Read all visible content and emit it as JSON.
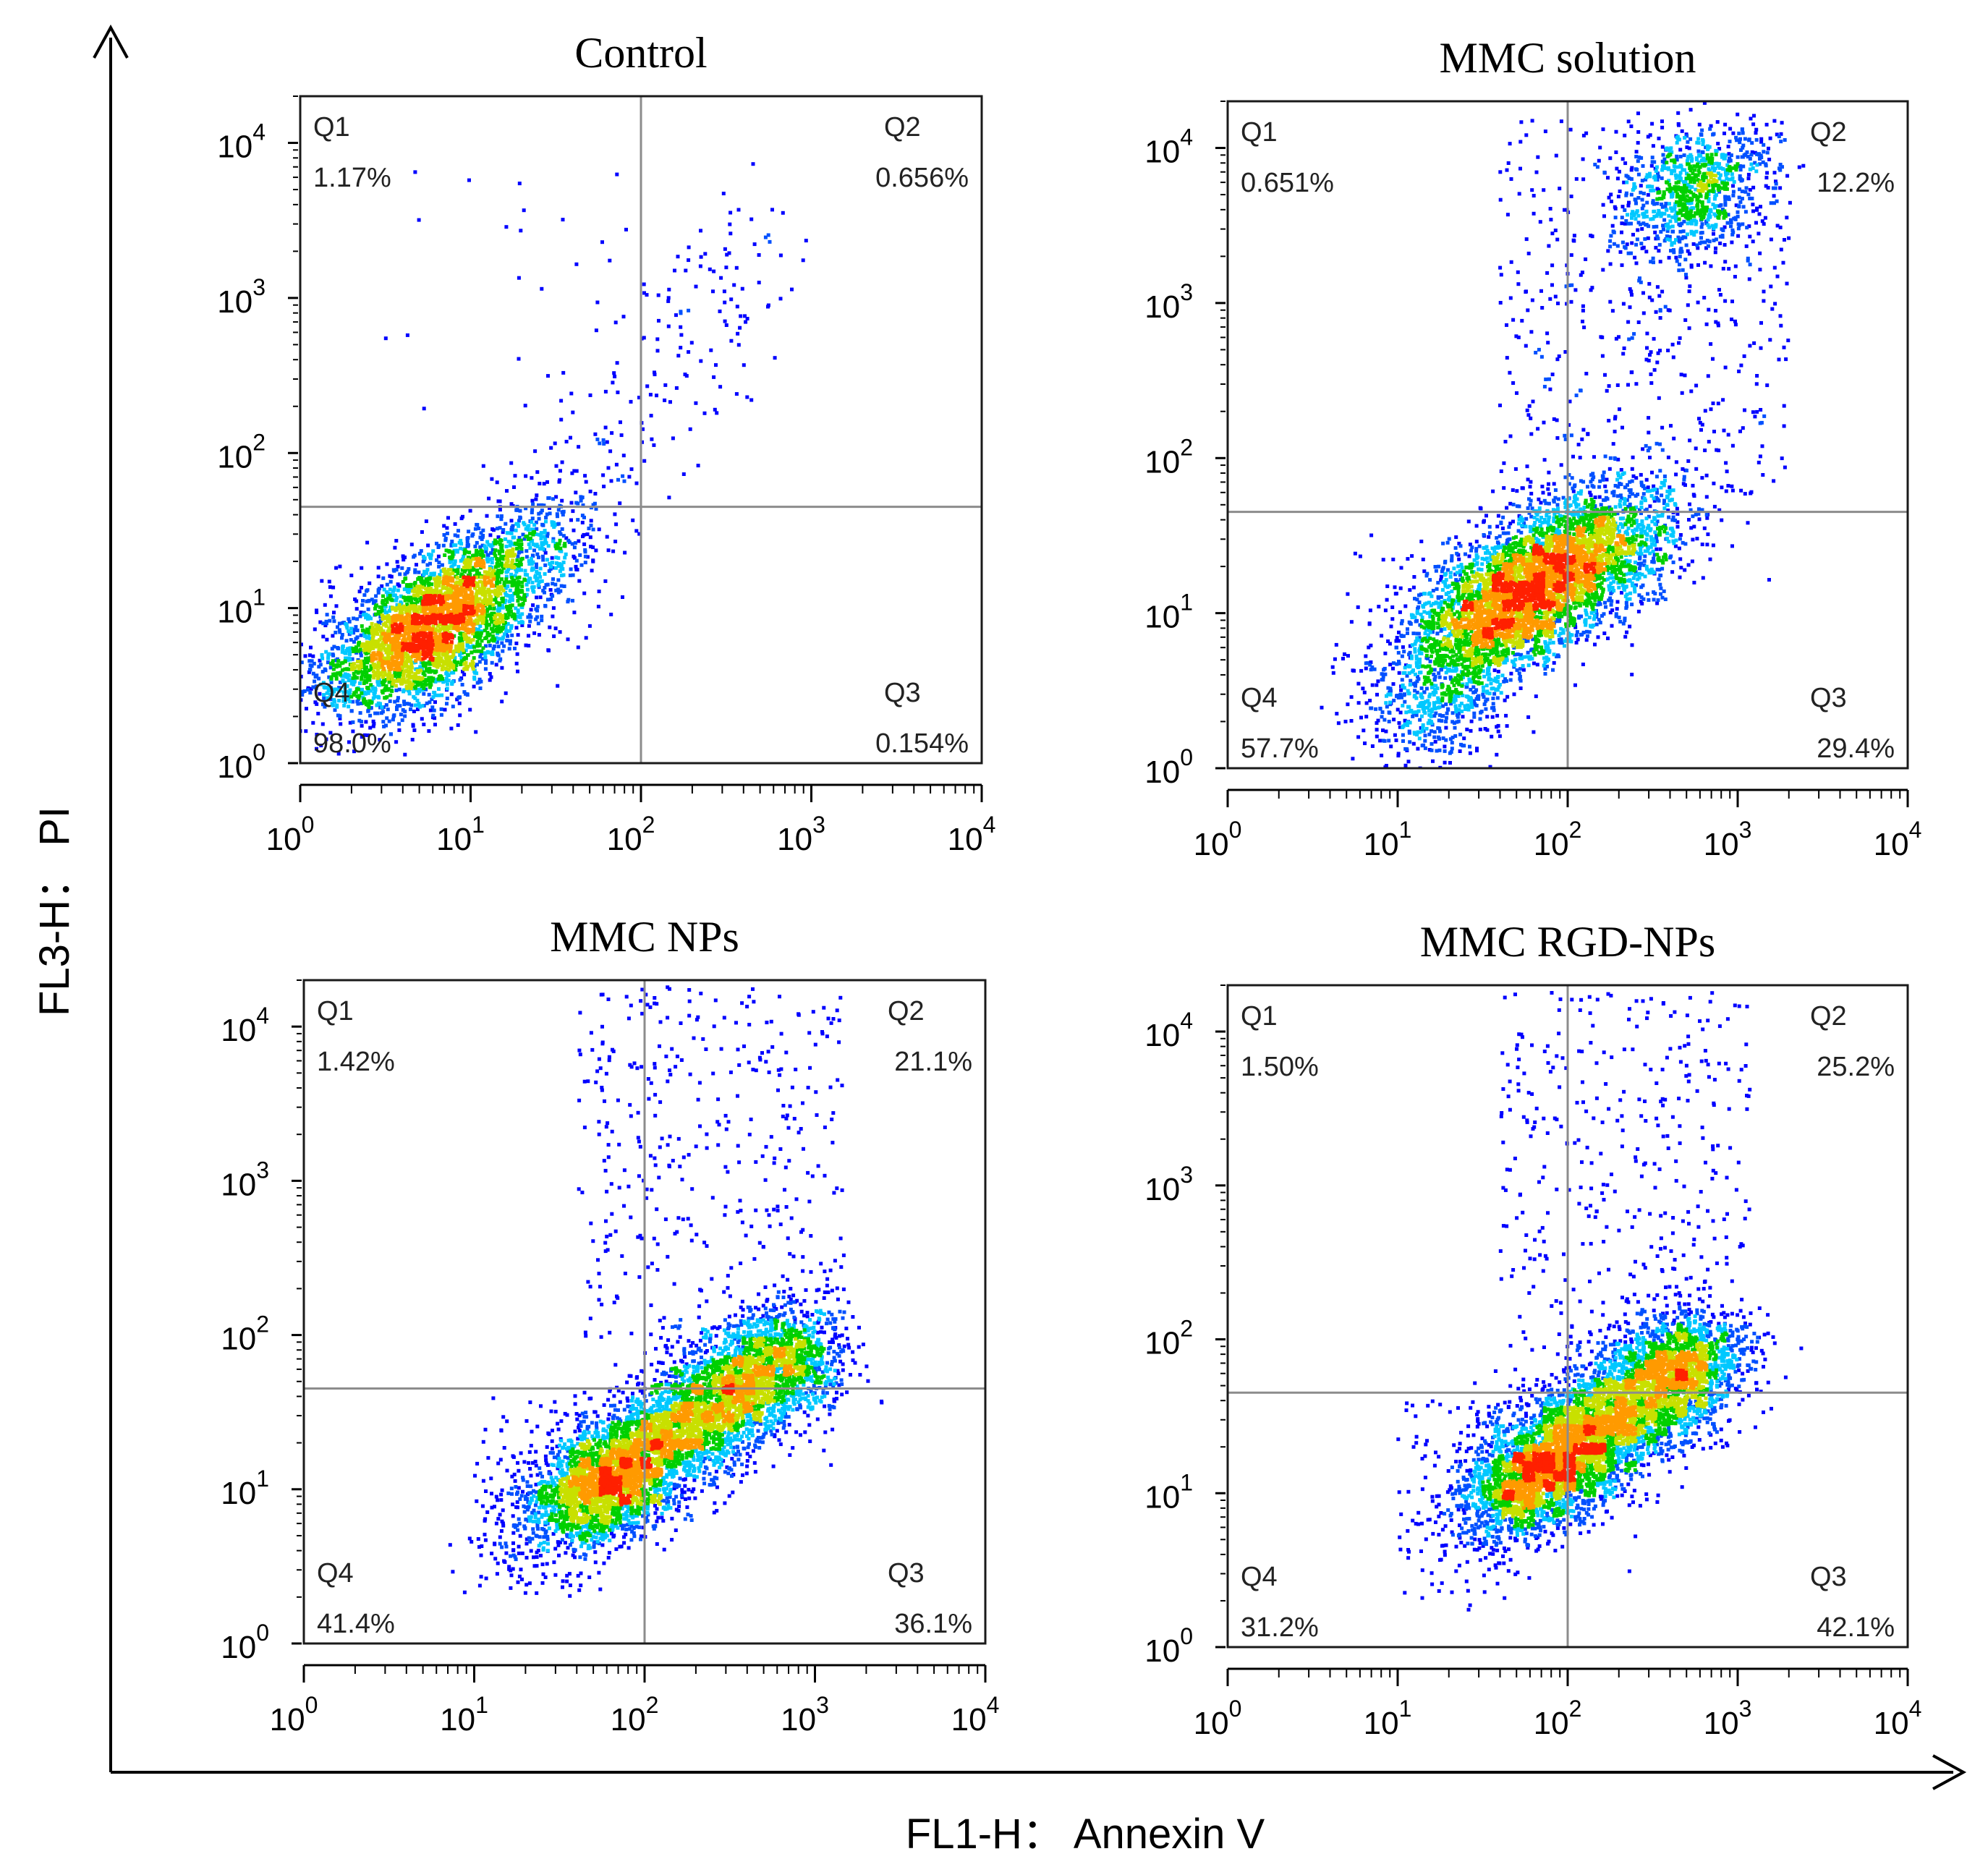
{
  "figure": {
    "x_axis_label": "FL1-H： Annexin V",
    "y_axis_label": "FL3-H： PI"
  },
  "colors": {
    "density_low": "#0000ff",
    "density_mid": "#00c8ff",
    "density_high": "#00d000",
    "density_peak": "#ff2000",
    "gate_line": "#8c8c8c",
    "frame": "#1a1a1a"
  },
  "chart_data": [
    {
      "type": "scatter",
      "title": "Control",
      "xlabel": "FL1-H： Annexin V",
      "ylabel": "FL3-H： PI",
      "x_scale": "log",
      "y_scale": "log",
      "xlim": [
        1,
        10000
      ],
      "ylim": [
        1,
        20000
      ],
      "x_tick_labels": [
        "10^0",
        "10^1",
        "10^2",
        "10^3",
        "10^4"
      ],
      "y_tick_labels": [
        "10^0",
        "10^1",
        "10^2",
        "10^3",
        "10^4"
      ],
      "gate": {
        "x": 100,
        "y": 45
      },
      "quadrants": [
        {
          "name": "Q1",
          "percent": "1.17%"
        },
        {
          "name": "Q2",
          "percent": "0.656%"
        },
        {
          "name": "Q3",
          "percent": "0.154%"
        },
        {
          "name": "Q4",
          "percent": "98.0%"
        }
      ],
      "population": {
        "main_center": [
          5.5,
          7
        ],
        "main_spread_decades": [
          0.38,
          0.3
        ],
        "tail_to": [
          600,
          3000
        ]
      }
    },
    {
      "type": "scatter",
      "title": "MMC solution",
      "xlabel": "FL1-H： Annexin V",
      "ylabel": "FL3-H： PI",
      "x_scale": "log",
      "y_scale": "log",
      "xlim": [
        1,
        10000
      ],
      "ylim": [
        1,
        20000
      ],
      "x_tick_labels": [
        "10^0",
        "10^1",
        "10^2",
        "10^3",
        "10^4"
      ],
      "y_tick_labels": [
        "10^0",
        "10^1",
        "10^2",
        "10^3",
        "10^4"
      ],
      "gate": {
        "x": 100,
        "y": 45
      },
      "quadrants": [
        {
          "name": "Q1",
          "percent": "0.651%"
        },
        {
          "name": "Q2",
          "percent": "12.2%"
        },
        {
          "name": "Q3",
          "percent": "29.4%"
        },
        {
          "name": "Q4",
          "percent": "57.7%"
        }
      ],
      "population": {
        "main_center": [
          55,
          14
        ],
        "main_spread_decades": [
          0.42,
          0.32
        ],
        "upper_cluster_center": [
          550,
          5000
        ]
      }
    },
    {
      "type": "scatter",
      "title": "MMC NPs",
      "xlabel": "FL1-H： Annexin V",
      "ylabel": "FL3-H： PI",
      "x_scale": "log",
      "y_scale": "log",
      "xlim": [
        1,
        10000
      ],
      "ylim": [
        1,
        20000
      ],
      "x_tick_labels": [
        "10^0",
        "10^1",
        "10^2",
        "10^3",
        "10^4"
      ],
      "y_tick_labels": [
        "10^0",
        "10^1",
        "10^2",
        "10^3",
        "10^4"
      ],
      "gate": {
        "x": 100,
        "y": 45
      },
      "quadrants": [
        {
          "name": "Q1",
          "percent": "1.42%"
        },
        {
          "name": "Q2",
          "percent": "21.1%"
        },
        {
          "name": "Q3",
          "percent": "36.1%"
        },
        {
          "name": "Q4",
          "percent": "41.4%"
        }
      ],
      "population": {
        "diagonal_from": [
          40,
          8
        ],
        "diagonal_to": [
          900,
          90
        ]
      }
    },
    {
      "type": "scatter",
      "title": "MMC RGD-NPs",
      "xlabel": "FL1-H： Annexin V",
      "ylabel": "FL3-H： PI",
      "x_scale": "log",
      "y_scale": "log",
      "xlim": [
        1,
        10000
      ],
      "ylim": [
        1,
        20000
      ],
      "x_tick_labels": [
        "10^0",
        "10^1",
        "10^2",
        "10^3",
        "10^4"
      ],
      "y_tick_labels": [
        "10^0",
        "10^1",
        "10^2",
        "10^3",
        "10^4"
      ],
      "gate": {
        "x": 100,
        "y": 45
      },
      "quadrants": [
        {
          "name": "Q1",
          "percent": "1.50%"
        },
        {
          "name": "Q2",
          "percent": "25.2%"
        },
        {
          "name": "Q3",
          "percent": "42.1%"
        },
        {
          "name": "Q4",
          "percent": "31.2%"
        }
      ],
      "population": {
        "diagonal_from": [
          45,
          10
        ],
        "diagonal_to": [
          700,
          90
        ]
      }
    }
  ]
}
